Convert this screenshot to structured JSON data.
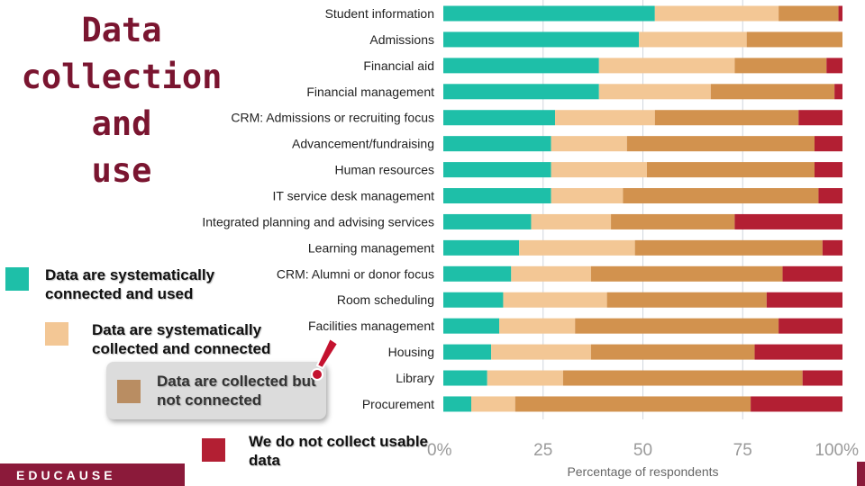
{
  "title_lines": [
    "Data",
    "collection",
    "and",
    "use"
  ],
  "legend": [
    {
      "key": "connected_used",
      "label": "Data are systematically connected and used",
      "color": "#1ebfa8"
    },
    {
      "key": "collected_connected",
      "label": "Data are systematically collected and connected",
      "color": "#f3c795"
    },
    {
      "key": "collected_not_connected",
      "label": "Data are collected but not connected",
      "color": "#d2924e"
    },
    {
      "key": "not_collected",
      "label": "We do not collect usable data",
      "color": "#b31f33"
    }
  ],
  "legend_swatch_colors": {
    "collected_not_connected": "#b98d62"
  },
  "footer": {
    "brand": "EDUCAUSE"
  },
  "colors": {
    "title": "#7a1530",
    "brand_bar": "#8b1a3a",
    "grid": "#d0d6de",
    "tick_text": "#9a9a9a"
  },
  "chart_data": {
    "type": "bar",
    "orientation": "horizontal",
    "stacked": true,
    "xlabel": "Percentage of respondents",
    "xlim": [
      0,
      100
    ],
    "xticks": [
      0,
      25,
      50,
      75,
      100
    ],
    "xtick_labels": [
      "0%",
      "25",
      "50",
      "75",
      "100%"
    ],
    "grid": true,
    "categories": [
      "Student information",
      "Admissions",
      "Financial aid",
      "Financial management",
      "CRM: Admissions or recruiting focus",
      "Advancement/fundraising",
      "Human resources",
      "IT service desk management",
      "Integrated planning and advising services",
      "Learning management",
      "CRM: Alumni or donor focus",
      "Room scheduling",
      "Facilities management",
      "Housing",
      "Library",
      "Procurement"
    ],
    "series": [
      {
        "key": "connected_used",
        "values": [
          53,
          49,
          39,
          39,
          28,
          27,
          27,
          27,
          22,
          19,
          17,
          15,
          14,
          12,
          11,
          7
        ]
      },
      {
        "key": "collected_connected",
        "values": [
          31,
          27,
          34,
          28,
          25,
          19,
          24,
          18,
          20,
          29,
          20,
          26,
          19,
          25,
          19,
          11
        ]
      },
      {
        "key": "collected_not_connected",
        "values": [
          15,
          24,
          23,
          31,
          36,
          47,
          42,
          49,
          31,
          47,
          48,
          40,
          51,
          41,
          60,
          59
        ]
      },
      {
        "key": "not_collected",
        "values": [
          1,
          0,
          4,
          2,
          11,
          7,
          7,
          6,
          27,
          5,
          15,
          19,
          16,
          22,
          10,
          23
        ]
      }
    ]
  }
}
